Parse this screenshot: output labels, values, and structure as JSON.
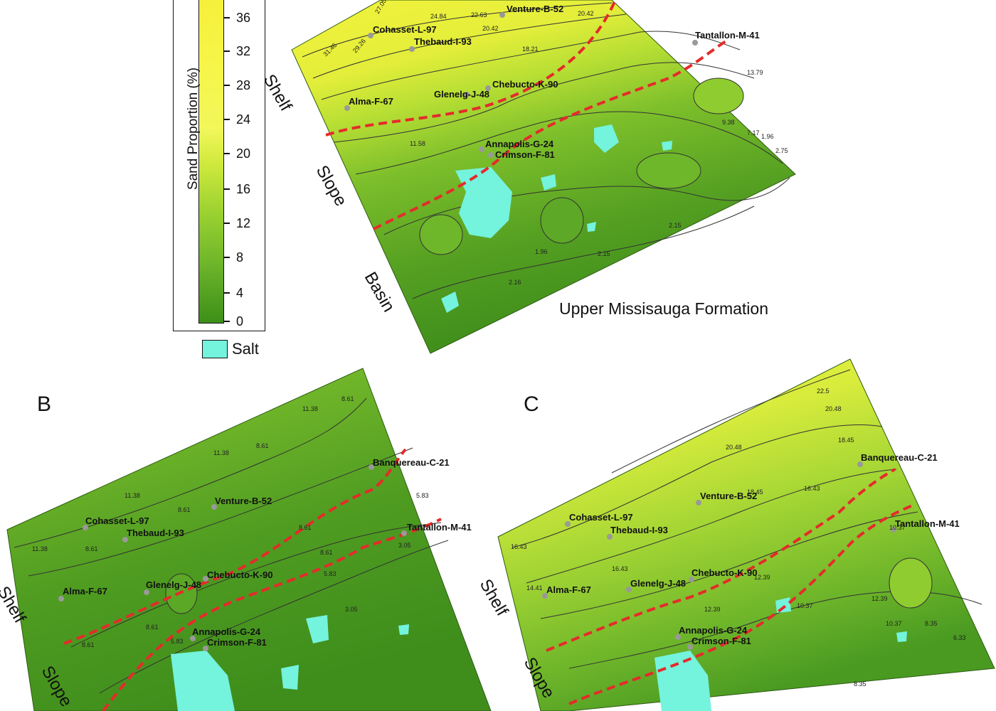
{
  "legend": {
    "title": "Sand Proportion (%)",
    "ticks": [
      "36",
      "32",
      "28",
      "24",
      "20",
      "16",
      "12",
      "8",
      "4",
      "0"
    ],
    "salt_label": "Salt",
    "colors": {
      "low": "#3d8f19",
      "mid": "#9ed331",
      "high": "#f5f03a",
      "salt": "#74f3dd"
    }
  },
  "panel_a": {
    "caption": "Upper Missisauga Formation",
    "zones": [
      "Shelf",
      "Slope",
      "Basin"
    ],
    "wells": [
      "Venture-B-52",
      "Cohasset-L-97",
      "Thebaud-I-93",
      "Tantallon-M-41",
      "Chebucto-K-90",
      "Alma-F-67",
      "Glenelg-J-48",
      "Annapolis-G-24",
      "Crimson-F-81"
    ],
    "contour_labels": [
      "27.05",
      "24.84",
      "22.63",
      "20.42",
      "20.42",
      "13.79",
      "31.46",
      "29.26",
      "18.21",
      "11.58",
      "9.38",
      "7.17",
      "1.96",
      "2.75",
      "2.15",
      "2.15",
      "2.16",
      "1.96"
    ]
  },
  "panel_b": {
    "letter": "B",
    "zones": [
      "Shelf",
      "Slope"
    ],
    "wells": [
      "Banquereau-C-21",
      "Venture-B-52",
      "Cohasset-L-97",
      "Thebaud-I-93",
      "Tantallon-M-41",
      "Chebucto-K-90",
      "Alma-F-67",
      "Glenelg-J-48",
      "Annapolis-G-24",
      "Crimson-F-81"
    ],
    "contour_labels": [
      "11.38",
      "8.61",
      "11.38",
      "8.61",
      "11.38",
      "8.61",
      "8.61",
      "8.61",
      "8.61",
      "5.83",
      "5.83",
      "3.05",
      "3.05",
      "5.83",
      "8.61",
      "11.38",
      "8.61"
    ]
  },
  "panel_c": {
    "letter": "C",
    "zones": [
      "Shelf",
      "Slope"
    ],
    "wells": [
      "Banquereau-C-21",
      "Venture-B-52",
      "Cohasset-L-97",
      "Thebaud-I-93",
      "Tantallon-M-41",
      "Chebucto-K-90",
      "Alma-F-67",
      "Glenelg-J-48",
      "Annapolis-G-24",
      "Crimson-F-81"
    ],
    "contour_labels": [
      "22.5",
      "20.48",
      "18.45",
      "20.48",
      "18.45",
      "16.43",
      "16.43",
      "16.43",
      "14.41",
      "12.39",
      "12.39",
      "10.37",
      "10.37",
      "8.35",
      "6.33",
      "12.39",
      "10.37",
      "8.35"
    ]
  }
}
